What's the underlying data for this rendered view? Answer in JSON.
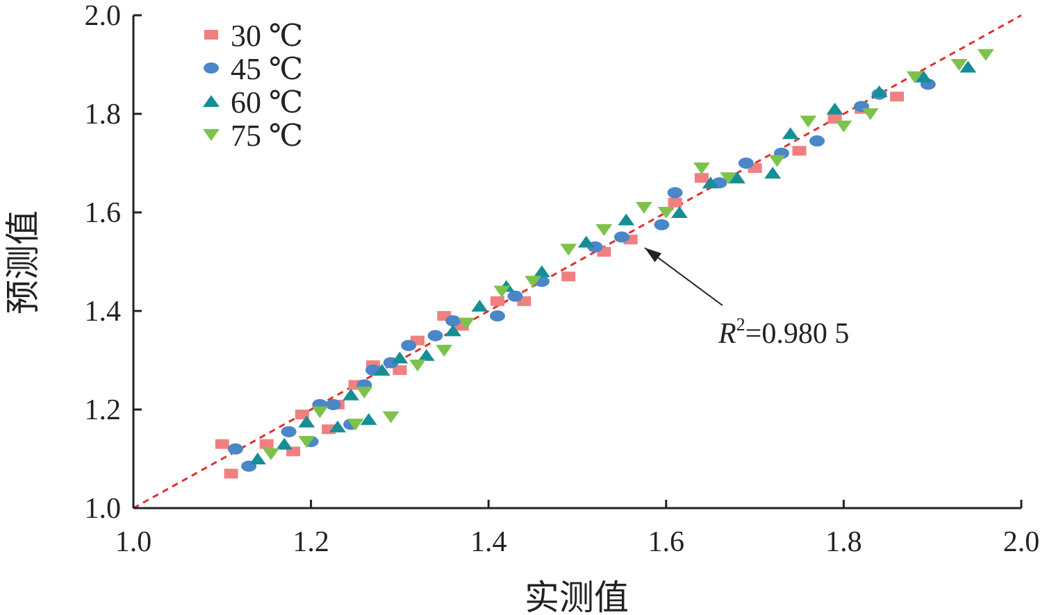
{
  "chart_data": {
    "type": "scatter",
    "xlabel": "实测值",
    "ylabel": "预测值",
    "xlim": [
      1.0,
      2.0
    ],
    "ylim": [
      1.0,
      2.0
    ],
    "xticks": [
      "1.0",
      "1.2",
      "1.4",
      "1.6",
      "1.8",
      "2.0"
    ],
    "yticks": [
      "1.0",
      "1.2",
      "1.4",
      "1.6",
      "1.8",
      "2.0"
    ],
    "grid": false,
    "legend_position": "top-left",
    "reference_line": {
      "x": [
        1.0,
        2.0
      ],
      "y": [
        1.0,
        2.0
      ],
      "style": "dashed",
      "color": "#e0302a"
    },
    "annotation": {
      "text_r": "R",
      "text_sup": "2",
      "text_value": "=0.980 5",
      "points_to": [
        1.565,
        1.545
      ]
    },
    "series": [
      {
        "name": "30 ℃",
        "marker": "square",
        "color": "#f08080",
        "x": [
          1.1,
          1.11,
          1.15,
          1.18,
          1.19,
          1.22,
          1.23,
          1.25,
          1.27,
          1.3,
          1.32,
          1.35,
          1.37,
          1.41,
          1.44,
          1.49,
          1.53,
          1.56,
          1.61,
          1.64,
          1.7,
          1.75,
          1.79,
          1.82,
          1.86
        ],
        "y": [
          1.13,
          1.07,
          1.13,
          1.115,
          1.19,
          1.16,
          1.21,
          1.25,
          1.29,
          1.28,
          1.34,
          1.39,
          1.37,
          1.42,
          1.42,
          1.47,
          1.52,
          1.545,
          1.62,
          1.67,
          1.69,
          1.725,
          1.79,
          1.81,
          1.835
        ]
      },
      {
        "name": "45 ℃",
        "marker": "circle",
        "color": "#4a86c8",
        "x": [
          1.115,
          1.13,
          1.175,
          1.2,
          1.21,
          1.225,
          1.245,
          1.26,
          1.27,
          1.29,
          1.31,
          1.34,
          1.36,
          1.41,
          1.43,
          1.46,
          1.52,
          1.55,
          1.595,
          1.61,
          1.66,
          1.69,
          1.73,
          1.77,
          1.82,
          1.84,
          1.895
        ],
        "y": [
          1.12,
          1.085,
          1.155,
          1.135,
          1.21,
          1.21,
          1.17,
          1.25,
          1.28,
          1.295,
          1.33,
          1.35,
          1.38,
          1.39,
          1.43,
          1.46,
          1.53,
          1.55,
          1.575,
          1.64,
          1.66,
          1.7,
          1.72,
          1.745,
          1.815,
          1.84,
          1.86
        ]
      },
      {
        "name": "60 ℃",
        "marker": "triangle-up",
        "color": "#168e96",
        "x": [
          1.14,
          1.17,
          1.195,
          1.23,
          1.245,
          1.265,
          1.28,
          1.3,
          1.33,
          1.36,
          1.39,
          1.42,
          1.46,
          1.51,
          1.555,
          1.615,
          1.65,
          1.68,
          1.72,
          1.74,
          1.79,
          1.84,
          1.89,
          1.94
        ],
        "y": [
          1.1,
          1.13,
          1.175,
          1.165,
          1.23,
          1.18,
          1.28,
          1.305,
          1.31,
          1.36,
          1.41,
          1.45,
          1.48,
          1.54,
          1.585,
          1.6,
          1.66,
          1.67,
          1.68,
          1.76,
          1.81,
          1.845,
          1.875,
          1.895
        ]
      },
      {
        "name": "75 ℃",
        "marker": "triangle-down",
        "color": "#7cc24c",
        "x": [
          1.155,
          1.195,
          1.21,
          1.25,
          1.26,
          1.29,
          1.32,
          1.35,
          1.375,
          1.415,
          1.45,
          1.49,
          1.53,
          1.575,
          1.6,
          1.64,
          1.67,
          1.725,
          1.76,
          1.8,
          1.83,
          1.88,
          1.93,
          1.96
        ],
        "y": [
          1.11,
          1.135,
          1.195,
          1.17,
          1.235,
          1.185,
          1.29,
          1.32,
          1.375,
          1.44,
          1.46,
          1.525,
          1.565,
          1.61,
          1.6,
          1.69,
          1.67,
          1.705,
          1.785,
          1.775,
          1.8,
          1.875,
          1.9,
          1.92
        ]
      }
    ]
  }
}
